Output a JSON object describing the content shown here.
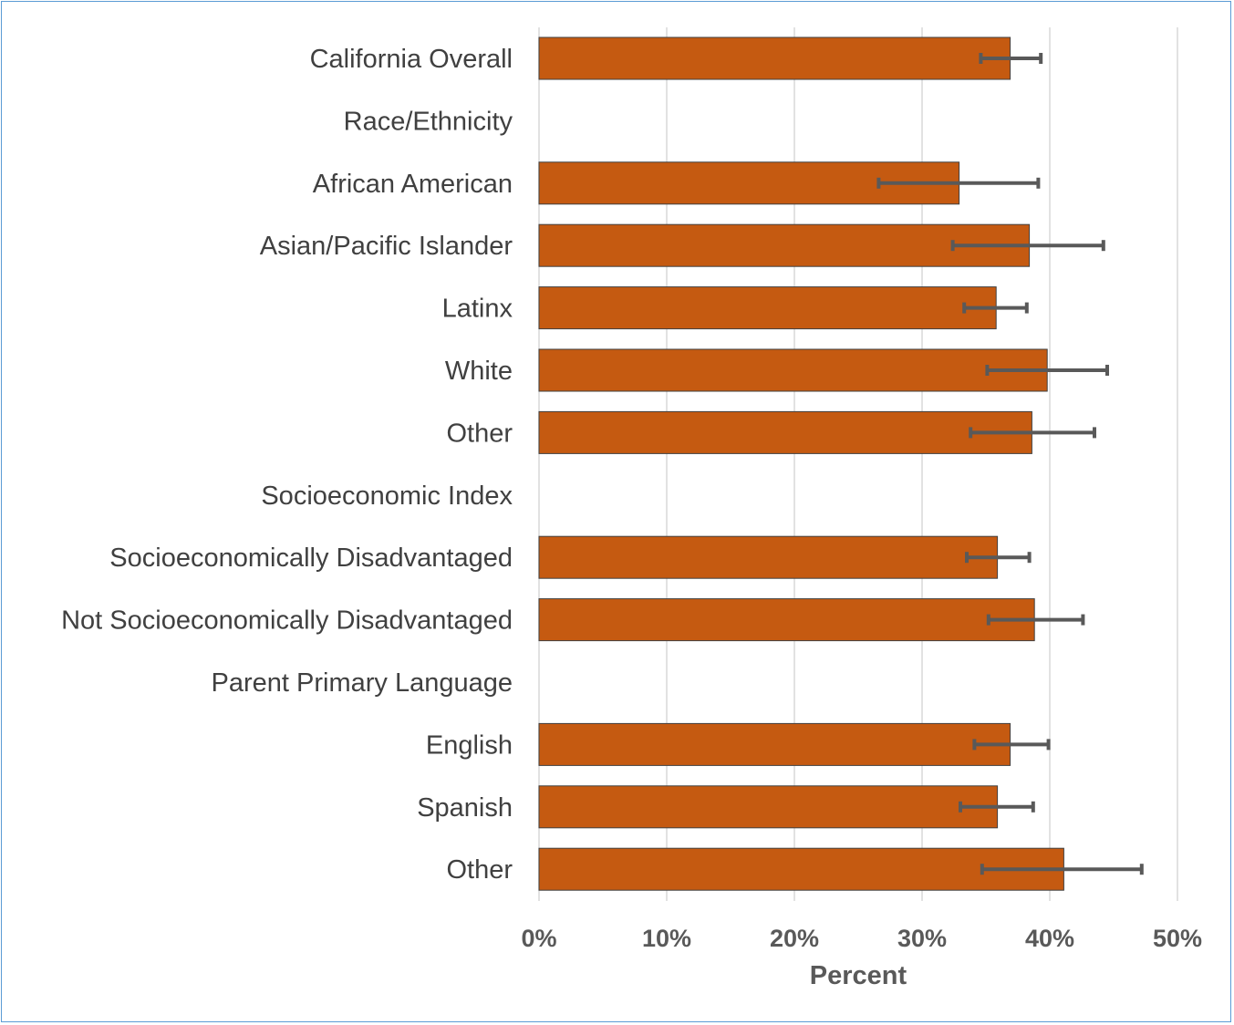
{
  "chart_data": {
    "type": "bar",
    "orientation": "horizontal",
    "xlabel": "Percent",
    "ylabel": "",
    "title": "",
    "xlim": [
      0,
      50
    ],
    "x_ticks": [
      "0%",
      "10%",
      "20%",
      "30%",
      "40%",
      "50%"
    ],
    "x_tick_values": [
      0,
      10,
      20,
      30,
      40,
      50
    ],
    "grid": "vertical",
    "bar_color": "#c55a11",
    "bar_edge_color": "#404040",
    "error_bar_color": "#595959",
    "gridline_color": "#d9d9d9",
    "categories": [
      {
        "label": "California Overall",
        "value": 36.9,
        "err_low": 34.6,
        "err_high": 39.3
      },
      {
        "label": "Race/Ethnicity",
        "value": null,
        "err_low": null,
        "err_high": null
      },
      {
        "label": "African American",
        "value": 32.9,
        "err_low": 26.6,
        "err_high": 39.1
      },
      {
        "label": "Asian/Pacific Islander",
        "value": 38.4,
        "err_low": 32.4,
        "err_high": 44.2
      },
      {
        "label": "Latinx",
        "value": 35.8,
        "err_low": 33.3,
        "err_high": 38.2
      },
      {
        "label": "White",
        "value": 39.8,
        "err_low": 35.1,
        "err_high": 44.5
      },
      {
        "label": "Other",
        "value": 38.6,
        "err_low": 33.8,
        "err_high": 43.5
      },
      {
        "label": "Socioeconomic Index",
        "value": null,
        "err_low": null,
        "err_high": null
      },
      {
        "label": "Socioeconomically Disadvantaged",
        "value": 35.9,
        "err_low": 33.5,
        "err_high": 38.4
      },
      {
        "label": "Not Socioeconomically Disadvantaged",
        "value": 38.8,
        "err_low": 35.2,
        "err_high": 42.6
      },
      {
        "label": "Parent Primary Language",
        "value": null,
        "err_low": null,
        "err_high": null
      },
      {
        "label": "English",
        "value": 36.9,
        "err_low": 34.1,
        "err_high": 39.9
      },
      {
        "label": "Spanish",
        "value": 35.9,
        "err_low": 33.0,
        "err_high": 38.7
      },
      {
        "label": "Other",
        "value": 41.1,
        "err_low": 34.7,
        "err_high": 47.2
      }
    ]
  }
}
